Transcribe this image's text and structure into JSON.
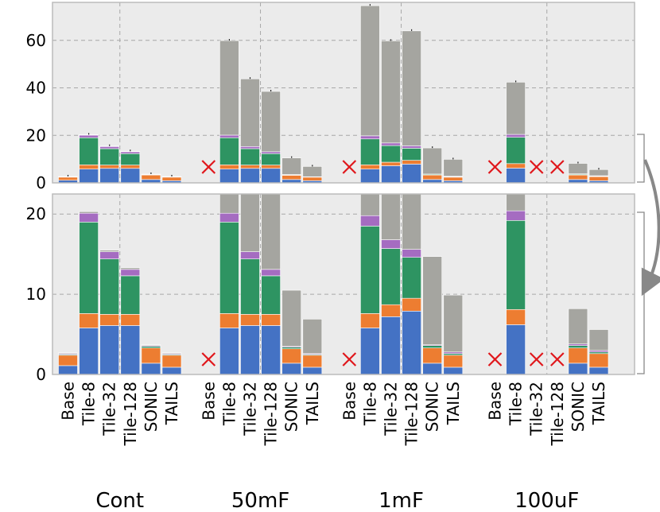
{
  "chart_data": {
    "type": "bar",
    "stacked": true,
    "panels": [
      {
        "name": "top",
        "ylim": [
          0,
          76
        ],
        "yticks": [
          0,
          20,
          40,
          60
        ],
        "clip": false
      },
      {
        "name": "bottom-zoom",
        "ylim": [
          0,
          22.5
        ],
        "yticks": [
          0,
          10,
          20
        ],
        "clip": true
      }
    ],
    "groups": [
      "Cont",
      "50mF",
      "1mF",
      "100uF"
    ],
    "categories": [
      "Base",
      "Tile-8",
      "Tile-32",
      "Tile-128",
      "SONIC",
      "TAILS"
    ],
    "series_colors": [
      "#4472c4",
      "#ed7d31",
      "#2e9462",
      "#a56cc1",
      "#a5a5a0"
    ],
    "bars": [
      {
        "group": "Cont",
        "category": "Base",
        "stack": [
          1.1,
          1.3,
          0.1,
          0.1,
          0.1
        ]
      },
      {
        "group": "Cont",
        "category": "Tile-8",
        "stack": [
          5.8,
          1.8,
          11.4,
          1.1,
          0.2
        ]
      },
      {
        "group": "Cont",
        "category": "Tile-32",
        "stack": [
          6.1,
          1.4,
          6.9,
          0.9,
          0.2
        ]
      },
      {
        "group": "Cont",
        "category": "Tile-128",
        "stack": [
          6.1,
          1.4,
          4.8,
          0.8,
          0.2
        ]
      },
      {
        "group": "Cont",
        "category": "SONIC",
        "stack": [
          1.4,
          1.9,
          0.2,
          0.1,
          0.1
        ]
      },
      {
        "group": "Cont",
        "category": "TAILS",
        "stack": [
          0.9,
          1.5,
          0.1,
          0.1,
          0.1
        ]
      },
      {
        "group": "50mF",
        "category": "Base",
        "failed": true
      },
      {
        "group": "50mF",
        "category": "Tile-8",
        "stack": [
          5.8,
          1.8,
          11.4,
          1.1,
          39.8
        ]
      },
      {
        "group": "50mF",
        "category": "Tile-32",
        "stack": [
          6.1,
          1.4,
          6.9,
          0.9,
          28.5
        ]
      },
      {
        "group": "50mF",
        "category": "Tile-128",
        "stack": [
          6.1,
          1.4,
          4.8,
          0.8,
          25.4
        ]
      },
      {
        "group": "50mF",
        "category": "SONIC",
        "stack": [
          1.4,
          1.8,
          0.2,
          0.1,
          7.0
        ]
      },
      {
        "group": "50mF",
        "category": "TAILS",
        "stack": [
          0.9,
          1.5,
          0.1,
          0.1,
          4.3
        ]
      },
      {
        "group": "1mF",
        "category": "Base",
        "failed": true
      },
      {
        "group": "1mF",
        "category": "Tile-8",
        "stack": [
          5.8,
          1.8,
          10.9,
          1.3,
          54.8
        ]
      },
      {
        "group": "1mF",
        "category": "Tile-32",
        "stack": [
          7.2,
          1.5,
          7.0,
          1.1,
          43.0
        ]
      },
      {
        "group": "1mF",
        "category": "Tile-128",
        "stack": [
          7.9,
          1.6,
          5.1,
          1.0,
          48.4
        ]
      },
      {
        "group": "1mF",
        "category": "SONIC",
        "stack": [
          1.4,
          1.9,
          0.3,
          0.1,
          11.0
        ]
      },
      {
        "group": "1mF",
        "category": "TAILS",
        "stack": [
          0.9,
          1.5,
          0.2,
          0.2,
          7.1
        ]
      },
      {
        "group": "100uF",
        "category": "Base",
        "failed": true
      },
      {
        "group": "100uF",
        "category": "Tile-8",
        "stack": [
          6.2,
          1.9,
          11.1,
          1.2,
          22.0
        ]
      },
      {
        "group": "100uF",
        "category": "Tile-32",
        "failed": true
      },
      {
        "group": "100uF",
        "category": "Tile-128",
        "failed": true
      },
      {
        "group": "100uF",
        "category": "SONIC",
        "stack": [
          1.4,
          1.9,
          0.3,
          0.2,
          4.4
        ]
      },
      {
        "group": "100uF",
        "category": "TAILS",
        "stack": [
          0.9,
          1.7,
          0.2,
          0.2,
          2.6
        ]
      }
    ]
  }
}
